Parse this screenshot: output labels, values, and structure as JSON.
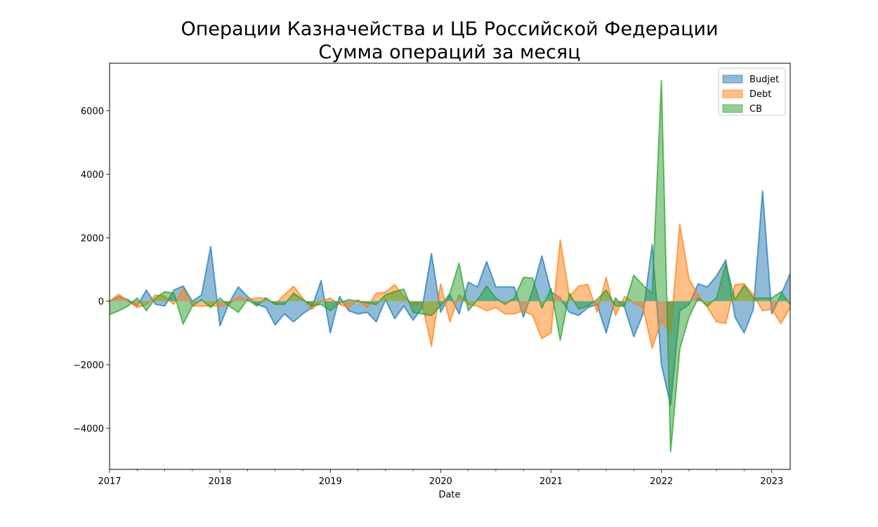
{
  "chart_data": {
    "type": "area",
    "title": "Операции Казначейства и ЦБ Российской Федерации",
    "subtitle": "Сумма операций за месяц",
    "xlabel": "Date",
    "ylabel": "",
    "xlim": [
      2017.0,
      2023.167
    ],
    "ylim": [
      -5300,
      7500
    ],
    "x_ticks": [
      {
        "value": 2017,
        "label": "2017"
      },
      {
        "value": 2018,
        "label": "2018"
      },
      {
        "value": 2019,
        "label": "2019"
      },
      {
        "value": 2020,
        "label": "2020"
      },
      {
        "value": 2021,
        "label": "2021"
      },
      {
        "value": 2022,
        "label": "2022"
      },
      {
        "value": 2023,
        "label": "2023"
      }
    ],
    "y_ticks": [
      {
        "value": -4000,
        "label": "−4000"
      },
      {
        "value": -2000,
        "label": "−2000"
      },
      {
        "value": 0,
        "label": "0"
      },
      {
        "value": 2000,
        "label": "2000"
      },
      {
        "value": 4000,
        "label": "4000"
      },
      {
        "value": 6000,
        "label": "6000"
      }
    ],
    "grid": false,
    "legend_position": "top-right",
    "start": "2017-01",
    "series": [
      {
        "name": "Budjet",
        "color": "#1f77b4",
        "values": [
          0,
          150,
          50,
          -150,
          350,
          -100,
          -150,
          350,
          480,
          0,
          200,
          1720,
          -780,
          -50,
          450,
          150,
          -100,
          -200,
          -750,
          -400,
          -650,
          -400,
          -200,
          650,
          -1000,
          150,
          -300,
          -400,
          -350,
          -650,
          50,
          -550,
          -150,
          -600,
          -200,
          1500,
          -350,
          200,
          -400,
          600,
          450,
          1250,
          450,
          450,
          450,
          -500,
          350,
          1430,
          300,
          100,
          -350,
          -450,
          -200,
          -100,
          -1000,
          100,
          -200,
          -1120,
          -400,
          1780,
          -2000,
          -3280,
          -300,
          -100,
          550,
          450,
          800,
          1300,
          -500,
          -1000,
          -250,
          3480,
          -400,
          200,
          870
        ]
      },
      {
        "name": "Debt",
        "color": "#ff7f0e",
        "values": [
          0,
          220,
          0,
          -200,
          -100,
          200,
          150,
          -100,
          400,
          -150,
          -150,
          -150,
          -150,
          -100,
          150,
          50,
          100,
          100,
          -100,
          200,
          470,
          100,
          -250,
          0,
          100,
          -100,
          -200,
          50,
          -200,
          250,
          280,
          520,
          150,
          -100,
          -100,
          -1420,
          550,
          -650,
          200,
          -100,
          -150,
          -300,
          -200,
          -400,
          -400,
          -300,
          -450,
          -1180,
          -1000,
          1930,
          150,
          480,
          530,
          -350,
          750,
          -450,
          150,
          -50,
          -200,
          -1480,
          -600,
          -1020,
          2430,
          700,
          200,
          -200,
          -650,
          -700,
          520,
          550,
          200,
          -300,
          -250,
          -700,
          -200
        ]
      },
      {
        "name": "CB",
        "color": "#2ca02c",
        "values": [
          -420,
          -300,
          -150,
          100,
          -300,
          100,
          300,
          250,
          -720,
          -150,
          50,
          -200,
          100,
          -150,
          -350,
          50,
          -150,
          100,
          -100,
          -100,
          250,
          50,
          -150,
          -100,
          -300,
          -50,
          50,
          0,
          -50,
          -100,
          200,
          300,
          380,
          -350,
          -400,
          -450,
          -150,
          250,
          1200,
          -300,
          50,
          480,
          100,
          -100,
          100,
          750,
          730,
          -220,
          400,
          -1230,
          250,
          -250,
          -150,
          50,
          350,
          -150,
          -150,
          820,
          500,
          250,
          6950,
          -4750,
          -1500,
          -500,
          100,
          -150,
          100,
          1190,
          50,
          500,
          100,
          100,
          100,
          300,
          -100
        ]
      }
    ]
  }
}
